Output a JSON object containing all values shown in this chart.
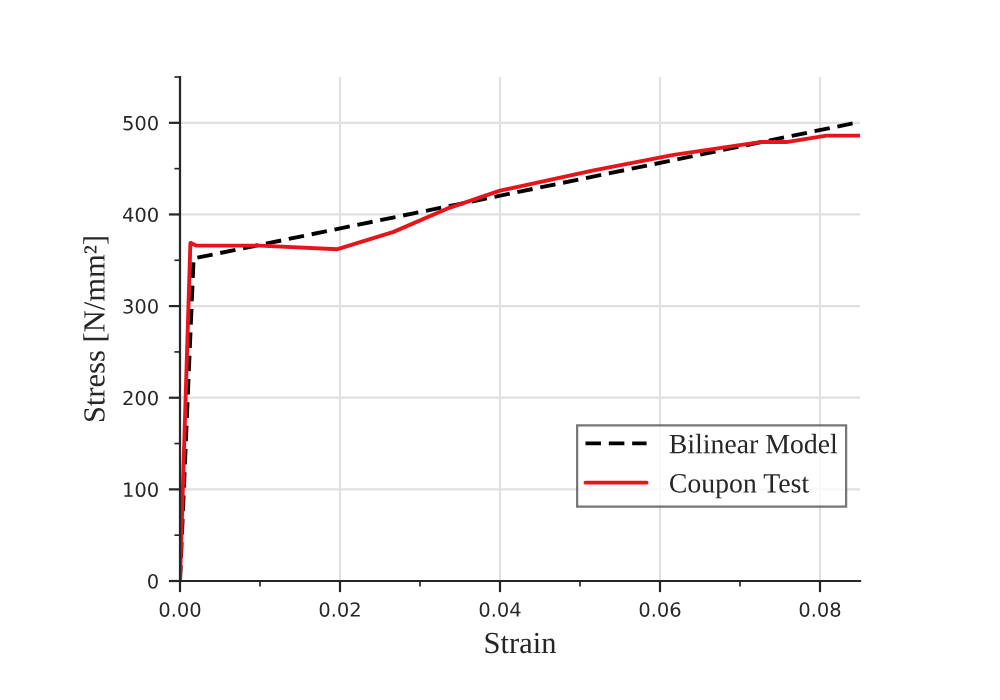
{
  "chart_data": {
    "type": "line",
    "xlabel": "Strain",
    "ylabel": "Stress [N/mm²]",
    "xlim": [
      0,
      0.085
    ],
    "ylim": [
      0,
      550
    ],
    "xticks": [
      {
        "value": 0,
        "label": "0.00"
      },
      {
        "value": 0.02,
        "label": "0.02"
      },
      {
        "value": 0.04,
        "label": "0.04"
      },
      {
        "value": 0.06,
        "label": "0.06"
      },
      {
        "value": 0.08,
        "label": "0.08"
      }
    ],
    "yticks": [
      0,
      100,
      200,
      300,
      400,
      500
    ],
    "grid": true,
    "legend": "bottom right",
    "series": [
      {
        "name": "Bilinear Model",
        "color": "#000000",
        "line_style": "dashed",
        "x": [
          0,
          0.0017,
          0.085
        ],
        "values": [
          0,
          352,
          501
        ]
      },
      {
        "name": "Coupon Test",
        "color": "#e8141b",
        "line_style": "solid",
        "x": [
          0,
          0.0013,
          0.002,
          0.01,
          0.0196,
          0.0267,
          0.0333,
          0.04,
          0.0517,
          0.0617,
          0.0725,
          0.0758,
          0.0808,
          0.085
        ],
        "values": [
          0,
          369,
          366,
          366,
          362,
          381,
          406,
          426,
          448,
          465,
          479,
          479,
          486,
          486
        ]
      }
    ]
  }
}
